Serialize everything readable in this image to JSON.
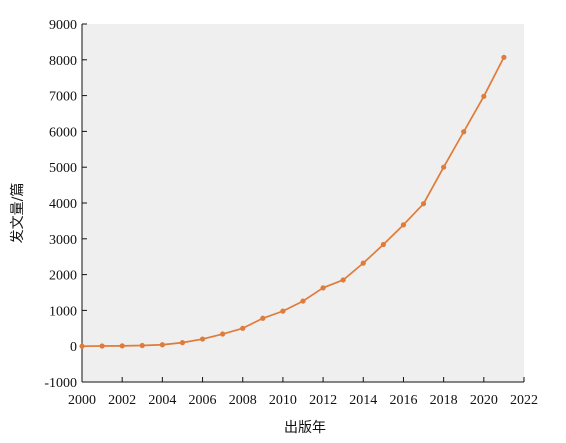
{
  "chart_data": {
    "type": "line",
    "xlabel": "出版年",
    "ylabel": "发文量/篇",
    "xlim": [
      2000,
      2022
    ],
    "ylim": [
      -1000,
      9000
    ],
    "x_ticks": [
      2000,
      2002,
      2004,
      2006,
      2008,
      2010,
      2012,
      2014,
      2016,
      2018,
      2020,
      2022
    ],
    "y_ticks": [
      -1000,
      0,
      1000,
      2000,
      3000,
      4000,
      5000,
      6000,
      7000,
      8000,
      9000
    ],
    "grid": false,
    "series": [
      {
        "x": [
          2000,
          2001,
          2002,
          2003,
          2004,
          2005,
          2006,
          2007,
          2008,
          2009,
          2010,
          2011,
          2012,
          2013,
          2014,
          2015,
          2016,
          2017,
          2018,
          2019,
          2020,
          2021
        ],
        "values": [
          0,
          5,
          10,
          20,
          40,
          100,
          200,
          340,
          500,
          780,
          980,
          1260,
          1630,
          1850,
          2320,
          2840,
          3390,
          3980,
          5000,
          5990,
          6980,
          8070
        ]
      }
    ]
  },
  "colors": {
    "line": "#e07b39",
    "plot_background": "#efefef",
    "axis": "#111111"
  }
}
